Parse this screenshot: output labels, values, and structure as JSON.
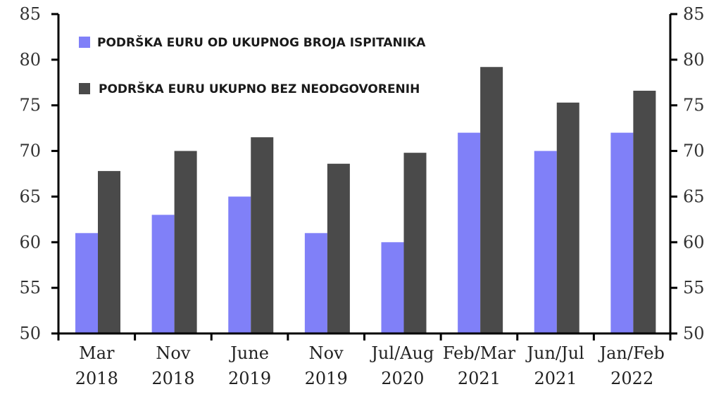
{
  "chart_data": {
    "type": "bar",
    "categories": [
      [
        "Mar",
        "2018"
      ],
      [
        "Nov",
        "2018"
      ],
      [
        "June",
        "2019"
      ],
      [
        "Nov",
        "2019"
      ],
      [
        "Jul/Aug",
        "2020"
      ],
      [
        "Feb/Mar",
        "2021"
      ],
      [
        "Jun/Jul",
        "2021"
      ],
      [
        "Jan/Feb",
        "2022"
      ]
    ],
    "series": [
      {
        "name": "PODRŠKA EURU OD UKUPNOG BROJA ISPITANIKA",
        "color": "#8080f8",
        "values": [
          61,
          63,
          65,
          61,
          60,
          72,
          70,
          72
        ]
      },
      {
        "name": "PODRŠKA EURU UKUPNO BEZ NEODGOVORENIH",
        "color": "#4a4a4a",
        "values": [
          67.8,
          70,
          71.5,
          68.6,
          69.8,
          79.2,
          75.3,
          76.6
        ]
      }
    ],
    "ylim": [
      50,
      85
    ],
    "yticks": [
      50,
      55,
      60,
      65,
      70,
      75,
      80,
      85
    ],
    "right_axis_ticks": [
      50,
      55,
      60,
      65,
      70,
      75,
      80,
      85
    ],
    "legend_position": "top-left",
    "grid": false
  }
}
